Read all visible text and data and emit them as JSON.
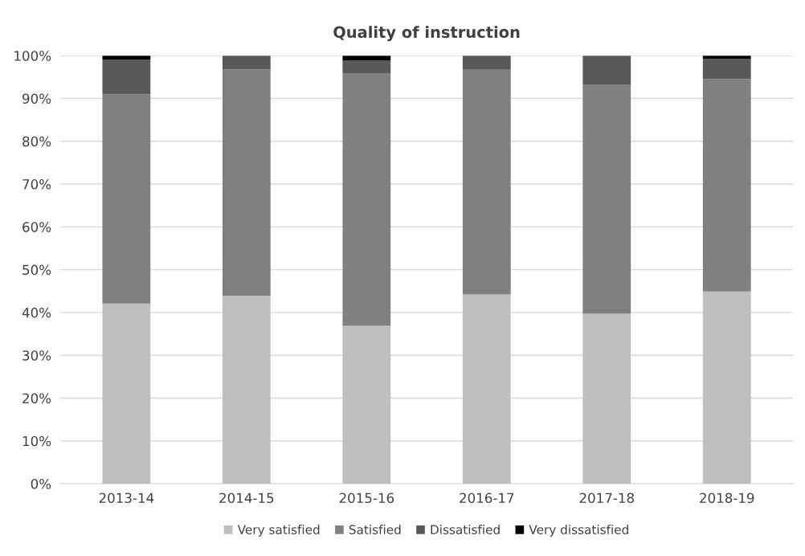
{
  "chart_data": {
    "type": "bar",
    "title": "Quality of instruction",
    "stacked": true,
    "categories": [
      "2013-14",
      "2014-15",
      "2015-16",
      "2016-17",
      "2017-18",
      "2018-19"
    ],
    "series": [
      {
        "name": "Very satisfied",
        "color": "#bfbfbf",
        "values": [
          42.1,
          43.9,
          36.9,
          44.2,
          39.7,
          44.9
        ]
      },
      {
        "name": "Satisfied",
        "color": "#808080",
        "values": [
          48.9,
          52.9,
          59.0,
          52.5,
          53.6,
          49.6
        ]
      },
      {
        "name": "Dissatisfied",
        "color": "#595959",
        "values": [
          8.0,
          3.2,
          2.9,
          3.3,
          6.7,
          4.8
        ]
      },
      {
        "name": "Very dissatisfied",
        "color": "#000000",
        "values": [
          1.0,
          0,
          1.2,
          0,
          0,
          0.7
        ]
      }
    ],
    "ylim": [
      0,
      100
    ],
    "yticks": [
      {
        "value": 0,
        "label": "0%"
      },
      {
        "value": 10,
        "label": "10%"
      },
      {
        "value": 20,
        "label": "20%"
      },
      {
        "value": 30,
        "label": "30%"
      },
      {
        "value": 40,
        "label": "40%"
      },
      {
        "value": 50,
        "label": "50%"
      },
      {
        "value": 60,
        "label": "60%"
      },
      {
        "value": 70,
        "label": "70%"
      },
      {
        "value": 80,
        "label": "80%"
      },
      {
        "value": 90,
        "label": "90%"
      },
      {
        "value": 100,
        "label": "100%"
      }
    ],
    "grid": "y",
    "legend": "bottom"
  }
}
